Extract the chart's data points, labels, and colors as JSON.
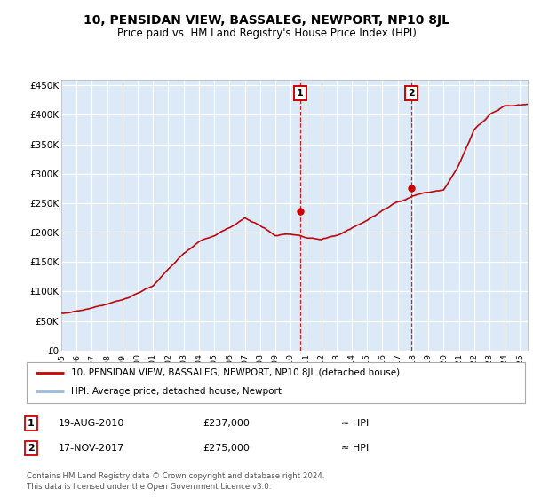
{
  "title": "10, PENSIDAN VIEW, BASSALEG, NEWPORT, NP10 8JL",
  "subtitle": "Price paid vs. HM Land Registry's House Price Index (HPI)",
  "ylabel_ticks": [
    "£0",
    "£50K",
    "£100K",
    "£150K",
    "£200K",
    "£250K",
    "£300K",
    "£350K",
    "£400K",
    "£450K"
  ],
  "ytick_values": [
    0,
    50000,
    100000,
    150000,
    200000,
    250000,
    300000,
    350000,
    400000,
    450000
  ],
  "ylim": [
    0,
    460000
  ],
  "xlim_start": 1995.0,
  "xlim_end": 2025.5,
  "background_color": "#ffffff",
  "plot_bg_color": "#dce9f7",
  "grid_color": "#ffffff",
  "hpi_line_color": "#99bbdd",
  "price_line_color": "#cc0000",
  "marker1_x": 2010.63,
  "marker1_y": 237000,
  "marker2_x": 2017.88,
  "marker2_y": 275000,
  "marker_box_color": "#cc0000",
  "dashed_line_color": "#cc0000",
  "legend_line1": "10, PENSIDAN VIEW, BASSALEG, NEWPORT, NP10 8JL (detached house)",
  "legend_line2": "HPI: Average price, detached house, Newport",
  "annotation1_date": "19-AUG-2010",
  "annotation1_price": "£237,000",
  "annotation1_hpi": "≈ HPI",
  "annotation2_date": "17-NOV-2017",
  "annotation2_price": "£275,000",
  "annotation2_hpi": "≈ HPI",
  "footnote": "Contains HM Land Registry data © Crown copyright and database right 2024.\nThis data is licensed under the Open Government Licence v3.0.",
  "xtick_years": [
    1995,
    1996,
    1997,
    1998,
    1999,
    2000,
    2001,
    2002,
    2003,
    2004,
    2005,
    2006,
    2007,
    2008,
    2009,
    2010,
    2011,
    2012,
    2013,
    2014,
    2015,
    2016,
    2017,
    2018,
    2019,
    2020,
    2021,
    2022,
    2023,
    2024,
    2025
  ],
  "hpi_anchors": [
    [
      1995,
      63000
    ],
    [
      1996,
      66000
    ],
    [
      1997,
      72000
    ],
    [
      1998,
      78000
    ],
    [
      1999,
      86000
    ],
    [
      2000,
      97000
    ],
    [
      2001,
      110000
    ],
    [
      2002,
      138000
    ],
    [
      2003,
      165000
    ],
    [
      2004,
      185000
    ],
    [
      2005,
      195000
    ],
    [
      2006,
      208000
    ],
    [
      2007,
      225000
    ],
    [
      2008,
      212000
    ],
    [
      2009,
      195000
    ],
    [
      2010,
      198000
    ],
    [
      2011,
      192000
    ],
    [
      2012,
      188000
    ],
    [
      2013,
      195000
    ],
    [
      2014,
      208000
    ],
    [
      2015,
      220000
    ],
    [
      2016,
      238000
    ],
    [
      2017,
      252000
    ],
    [
      2018,
      262000
    ],
    [
      2019,
      268000
    ],
    [
      2020,
      272000
    ],
    [
      2021,
      315000
    ],
    [
      2022,
      375000
    ],
    [
      2023,
      400000
    ],
    [
      2024,
      415000
    ],
    [
      2025.5,
      418000
    ]
  ]
}
